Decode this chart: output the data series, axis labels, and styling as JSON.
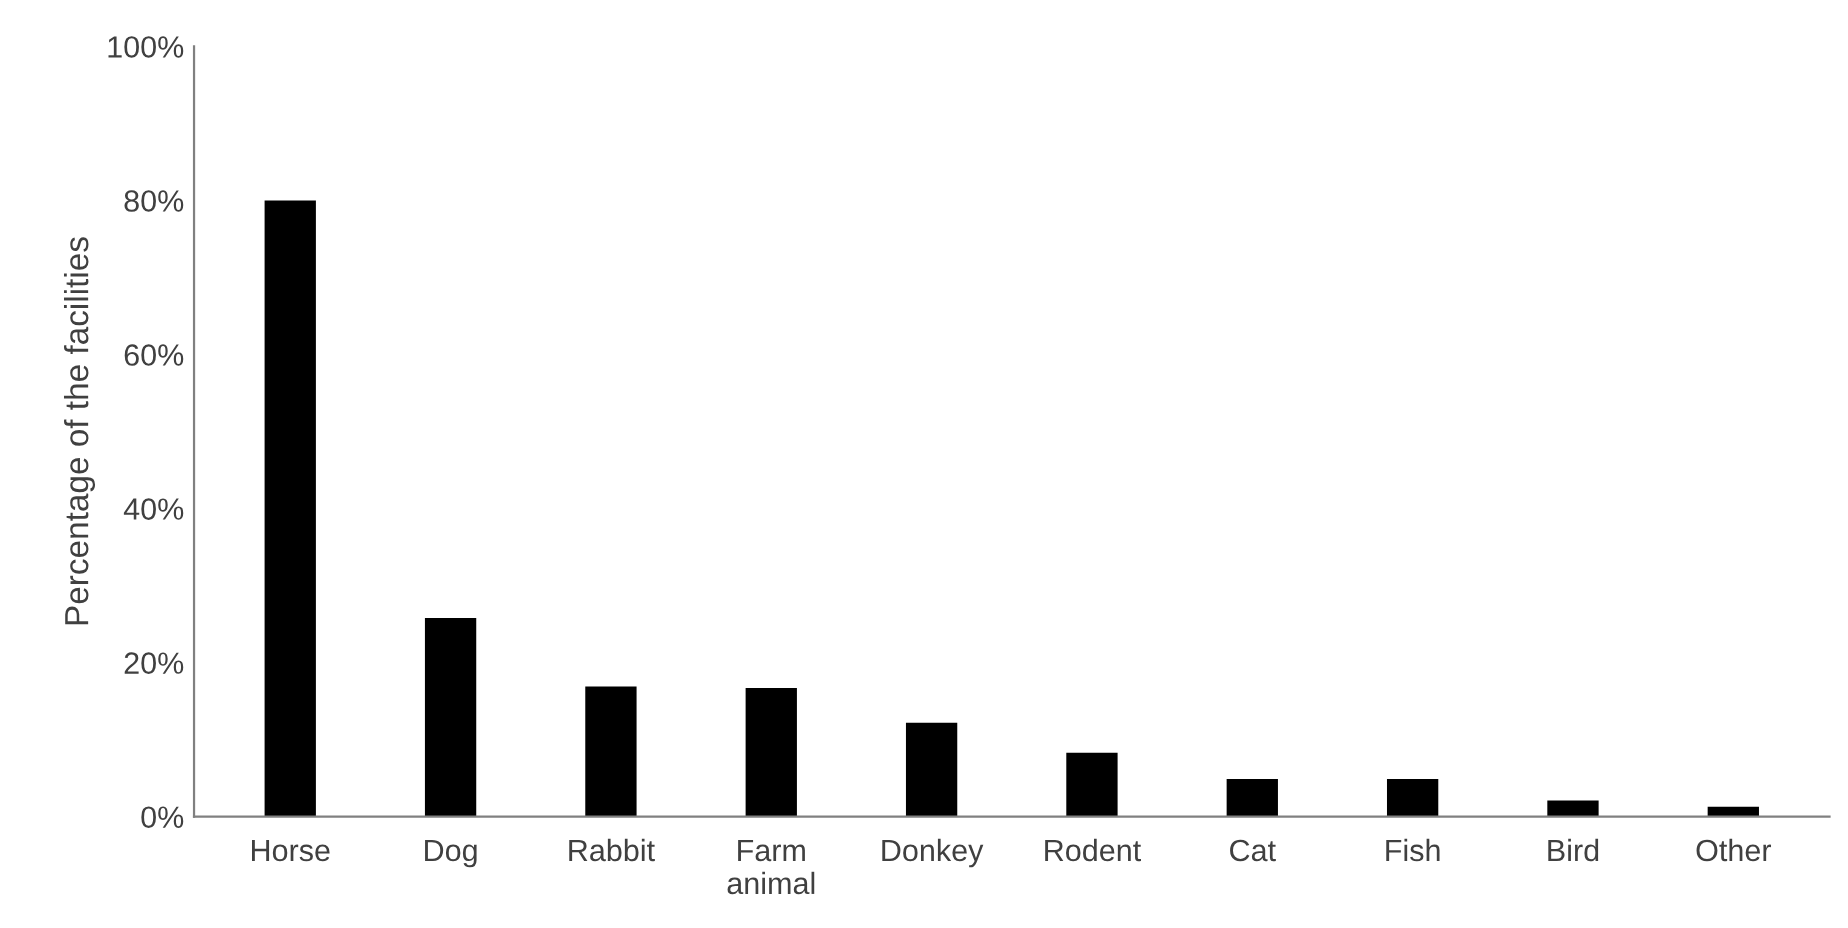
{
  "chart_data": {
    "type": "bar",
    "ylabel": "Percentage of the facilities",
    "categories": [
      "Horse",
      "Dog",
      "Rabbit",
      "Farm\nanimal",
      "Donkey",
      "Rodent",
      "Cat",
      "Fish",
      "Bird",
      "Other"
    ],
    "values": [
      80,
      25.8,
      16.9,
      16.7,
      12.2,
      8.3,
      4.9,
      4.9,
      2.1,
      1.3
    ],
    "color": "#000000",
    "ylim": [
      0,
      100
    ],
    "yticks": [
      {
        "value": 0,
        "label": "0%"
      },
      {
        "value": 20,
        "label": "20%"
      },
      {
        "value": 40,
        "label": "40%"
      },
      {
        "value": 60,
        "label": "60%"
      },
      {
        "value": 80,
        "label": "80%"
      },
      {
        "value": 100,
        "label": "100%"
      }
    ],
    "grid": false
  }
}
